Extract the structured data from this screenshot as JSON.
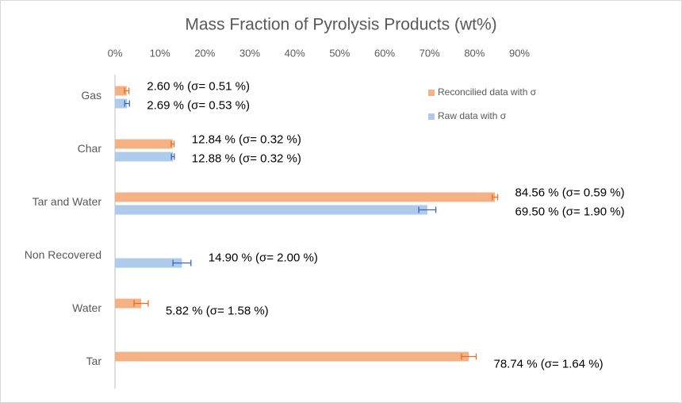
{
  "chart_data": {
    "type": "barh",
    "title": "Mass Fraction of Pyrolysis Products (wt%)",
    "categories": [
      "Gas",
      "Char",
      "Tar and Water",
      "Non Recovered",
      "Water",
      "Tar"
    ],
    "series": [
      {
        "name": "Reconcilied data with σ",
        "color": "#f4b183",
        "error_color": "#e0702a",
        "values": [
          2.6,
          12.84,
          84.56,
          null,
          5.82,
          78.74
        ],
        "errors": [
          0.51,
          0.32,
          0.59,
          null,
          1.58,
          1.64
        ],
        "value_labels": [
          "2.60 % (σ= 0.51 %)",
          "12.84 % (σ= 0.32 %)",
          "84.56 % (σ= 0.59 %)",
          null,
          "5.82 % (σ= 1.58 %)",
          "78.74 % (σ= 1.64 %)"
        ]
      },
      {
        "name": "Raw data with σ",
        "color": "#aecbec",
        "error_color": "#3a67b5",
        "values": [
          2.69,
          12.88,
          69.5,
          14.9,
          null,
          null
        ],
        "errors": [
          0.53,
          0.32,
          1.9,
          2.0,
          null,
          null
        ],
        "value_labels": [
          "2.69 % (σ= 0.53 %)",
          "12.88 % (σ= 0.32 %)",
          "69.50 % (σ= 1.90 %)",
          "14.90 % (σ= 2.00 %)",
          null,
          null
        ]
      }
    ],
    "xlim": [
      0,
      90
    ],
    "xticks": [
      {
        "value": 0,
        "label": "0%"
      },
      {
        "value": 10,
        "label": "10%"
      },
      {
        "value": 20,
        "label": "20%"
      },
      {
        "value": 30,
        "label": "30%"
      },
      {
        "value": 40,
        "label": "40%"
      },
      {
        "value": 50,
        "label": "50%"
      },
      {
        "value": 60,
        "label": "60%"
      },
      {
        "value": 70,
        "label": "70%"
      },
      {
        "value": 80,
        "label": "80%"
      },
      {
        "value": 90,
        "label": "90%"
      }
    ],
    "legend": "top-right"
  }
}
